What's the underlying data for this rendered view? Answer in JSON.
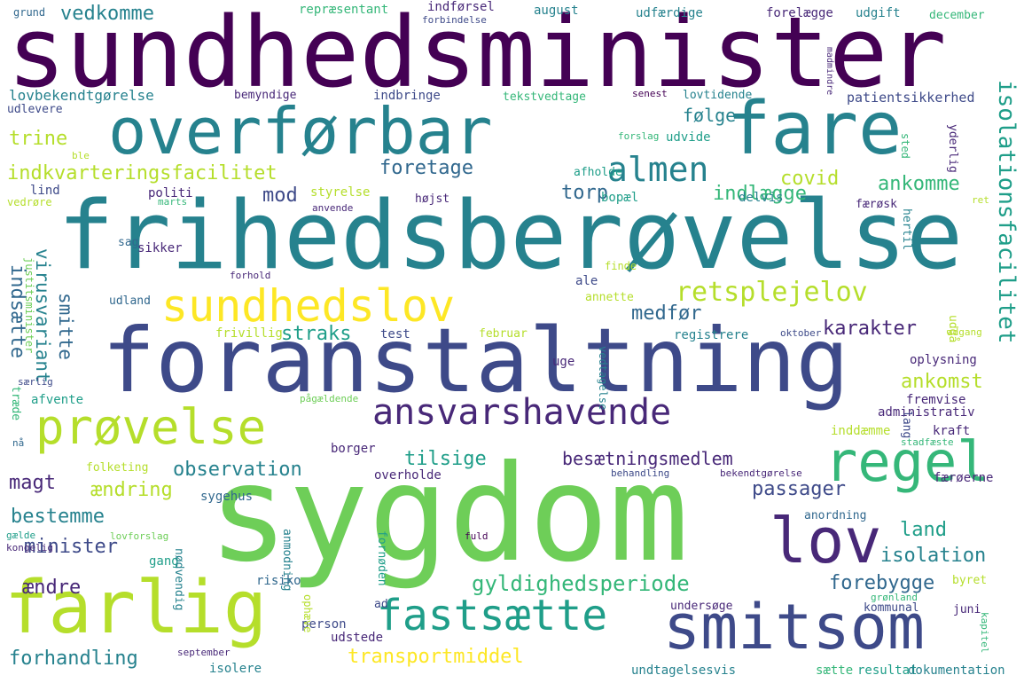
{
  "palette": {
    "dark_purple": "#440154",
    "purple": "#482878",
    "indigo": "#3e4a89",
    "blue": "#31688e",
    "teal": "#26828e",
    "green_teal": "#1f9e89",
    "green": "#35b779",
    "light_green": "#6ece58",
    "lime": "#b5de2b",
    "yellow": "#fde725"
  },
  "words": [
    {
      "text": "sundhedsminister",
      "color": "dark_purple"
    },
    {
      "text": "overførbar",
      "color": "teal"
    },
    {
      "text": "fare",
      "color": "teal"
    },
    {
      "text": "frihedsberøvelse",
      "color": "teal"
    },
    {
      "text": "sundhedslov",
      "color": "yellow"
    },
    {
      "text": "foranstaltning",
      "color": "indigo"
    },
    {
      "text": "prøvelse",
      "color": "lime"
    },
    {
      "text": "ansvarshavende",
      "color": "purple"
    },
    {
      "text": "regel",
      "color": "green"
    },
    {
      "text": "sygdom",
      "color": "light_green"
    },
    {
      "text": "farlig",
      "color": "lime"
    },
    {
      "text": "lov",
      "color": "purple"
    },
    {
      "text": "smitsom",
      "color": "indigo"
    },
    {
      "text": "fastsætte",
      "color": "green_teal"
    },
    {
      "text": "almen",
      "color": "teal"
    },
    {
      "text": "retsplejelov",
      "color": "lime"
    },
    {
      "text": "isolationsfacilitet",
      "color": "green_teal"
    },
    {
      "text": "indkvarteringsfacilitet",
      "color": "lime"
    },
    {
      "text": "gyldighedsperiode",
      "color": "green"
    },
    {
      "text": "transportmiddel",
      "color": "yellow"
    },
    {
      "text": "besætningsmedlem",
      "color": "purple"
    },
    {
      "text": "foretage",
      "color": "blue"
    },
    {
      "text": "vedkomme",
      "color": "teal"
    },
    {
      "text": "lovbekendtgørelse",
      "color": "teal"
    },
    {
      "text": "følge",
      "color": "teal"
    },
    {
      "text": "trine",
      "color": "lime"
    },
    {
      "text": "covid",
      "color": "lime"
    },
    {
      "text": "ankomme",
      "color": "green"
    },
    {
      "text": "indlægge",
      "color": "green"
    },
    {
      "text": "torp",
      "color": "blue"
    },
    {
      "text": "mod",
      "color": "indigo"
    },
    {
      "text": "indsætte",
      "color": "blue"
    },
    {
      "text": "virusvariant",
      "color": "teal"
    },
    {
      "text": "smitte",
      "color": "blue"
    },
    {
      "text": "straks",
      "color": "green_teal"
    },
    {
      "text": "medfør",
      "color": "blue"
    },
    {
      "text": "karakter",
      "color": "purple"
    },
    {
      "text": "ankomst",
      "color": "lime"
    },
    {
      "text": "observation",
      "color": "teal"
    },
    {
      "text": "tilsige",
      "color": "green_teal"
    },
    {
      "text": "magt",
      "color": "purple"
    },
    {
      "text": "ændring",
      "color": "lime"
    },
    {
      "text": "passager",
      "color": "indigo"
    },
    {
      "text": "bestemme",
      "color": "teal"
    },
    {
      "text": "minister",
      "color": "indigo"
    },
    {
      "text": "land",
      "color": "green_teal"
    },
    {
      "text": "isolation",
      "color": "teal"
    },
    {
      "text": "ændre",
      "color": "purple"
    },
    {
      "text": "forebygge",
      "color": "blue"
    },
    {
      "text": "forhandling",
      "color": "teal"
    },
    {
      "text": "patientsikkerhed",
      "color": "indigo"
    },
    {
      "text": "grund",
      "color": "blue"
    },
    {
      "text": "repræsentant",
      "color": "green"
    },
    {
      "text": "indførsel",
      "color": "purple"
    },
    {
      "text": "forbindelse",
      "color": "indigo"
    },
    {
      "text": "august",
      "color": "teal"
    },
    {
      "text": "udfærdige",
      "color": "teal"
    },
    {
      "text": "forelægge",
      "color": "purple"
    },
    {
      "text": "udgift",
      "color": "teal"
    },
    {
      "text": "december",
      "color": "green"
    },
    {
      "text": "bemyndige",
      "color": "purple"
    },
    {
      "text": "indbringe",
      "color": "indigo"
    },
    {
      "text": "tekstvedtage",
      "color": "green"
    },
    {
      "text": "senest",
      "color": "dark_purple"
    },
    {
      "text": "lovtidende",
      "color": "teal"
    },
    {
      "text": "udlevere",
      "color": "indigo"
    },
    {
      "text": "madmindre",
      "color": "purple"
    },
    {
      "text": "forslag",
      "color": "green"
    },
    {
      "text": "udvide",
      "color": "green_teal"
    },
    {
      "text": "ble",
      "color": "lime"
    },
    {
      "text": "afholde",
      "color": "green_teal"
    },
    {
      "text": "sted",
      "color": "green"
    },
    {
      "text": "yderlig",
      "color": "purple"
    },
    {
      "text": "lind",
      "color": "indigo"
    },
    {
      "text": "politi",
      "color": "purple"
    },
    {
      "text": "styrelse",
      "color": "lime"
    },
    {
      "text": "højst",
      "color": "purple"
    },
    {
      "text": "bopæl",
      "color": "green_teal"
    },
    {
      "text": "delvis",
      "color": "teal"
    },
    {
      "text": "vedrøre",
      "color": "lime"
    },
    {
      "text": "marts",
      "color": "green"
    },
    {
      "text": "anvende",
      "color": "purple"
    },
    {
      "text": "ret",
      "color": "lime"
    },
    {
      "text": "færøsk",
      "color": "purple"
    },
    {
      "text": "hertil",
      "color": "teal"
    },
    {
      "text": "sag",
      "color": "blue"
    },
    {
      "text": "sikker",
      "color": "purple"
    },
    {
      "text": "justitsminister",
      "color": "light_green"
    },
    {
      "text": "finde",
      "color": "lime"
    },
    {
      "text": "forhold",
      "color": "purple"
    },
    {
      "text": "ale",
      "color": "indigo"
    },
    {
      "text": "annette",
      "color": "lime"
    },
    {
      "text": "udland",
      "color": "blue"
    },
    {
      "text": "frivillig",
      "color": "lime"
    },
    {
      "text": "test",
      "color": "indigo"
    },
    {
      "text": "februar",
      "color": "lime"
    },
    {
      "text": "registrere",
      "color": "teal"
    },
    {
      "text": "oktober",
      "color": "indigo"
    },
    {
      "text": "udgå",
      "color": "lime"
    },
    {
      "text": "adgang",
      "color": "lime"
    },
    {
      "text": "særlig",
      "color": "indigo"
    },
    {
      "text": "uge",
      "color": "purple"
    },
    {
      "text": "vedtagelse",
      "color": "teal"
    },
    {
      "text": "oplysning",
      "color": "purple"
    },
    {
      "text": "fremvise",
      "color": "purple"
    },
    {
      "text": "træde",
      "color": "green"
    },
    {
      "text": "afvente",
      "color": "green_teal"
    },
    {
      "text": "pågældende",
      "color": "light_green"
    },
    {
      "text": "administrativ",
      "color": "purple"
    },
    {
      "text": "lang",
      "color": "indigo"
    },
    {
      "text": "inddæmme",
      "color": "lime"
    },
    {
      "text": "kraft",
      "color": "purple"
    },
    {
      "text": "stadfæste",
      "color": "green"
    },
    {
      "text": "nå",
      "color": "blue"
    },
    {
      "text": "borger",
      "color": "purple"
    },
    {
      "text": "folketing",
      "color": "lime"
    },
    {
      "text": "overholde",
      "color": "purple"
    },
    {
      "text": "behandling",
      "color": "indigo"
    },
    {
      "text": "bekendtgørelse",
      "color": "purple"
    },
    {
      "text": "færøerne",
      "color": "purple"
    },
    {
      "text": "sygehus",
      "color": "blue"
    },
    {
      "text": "anordning",
      "color": "blue"
    },
    {
      "text": "gælde",
      "color": "green_teal"
    },
    {
      "text": "lovforslag",
      "color": "light_green"
    },
    {
      "text": "anmodning",
      "color": "teal"
    },
    {
      "text": "fuld",
      "color": "dark_purple"
    },
    {
      "text": "kongelig",
      "color": "purple"
    },
    {
      "text": "gang",
      "color": "green_teal"
    },
    {
      "text": "fornøden",
      "color": "green_teal"
    },
    {
      "text": "nødvendig",
      "color": "teal"
    },
    {
      "text": "risiko",
      "color": "blue"
    },
    {
      "text": "byret",
      "color": "lime"
    },
    {
      "text": "ad",
      "color": "indigo"
    },
    {
      "text": "undersøge",
      "color": "purple"
    },
    {
      "text": "grønland",
      "color": "green"
    },
    {
      "text": "kommunal",
      "color": "indigo"
    },
    {
      "text": "juni",
      "color": "purple"
    },
    {
      "text": "person",
      "color": "indigo"
    },
    {
      "text": "ophæve",
      "color": "lime"
    },
    {
      "text": "udstede",
      "color": "purple"
    },
    {
      "text": "kapitel",
      "color": "green"
    },
    {
      "text": "september",
      "color": "purple"
    },
    {
      "text": "isolere",
      "color": "teal"
    },
    {
      "text": "undtagelsesvis",
      "color": "teal"
    },
    {
      "text": "sætte",
      "color": "green"
    },
    {
      "text": "resultat",
      "color": "green_teal"
    },
    {
      "text": "dokumentation",
      "color": "teal"
    }
  ]
}
